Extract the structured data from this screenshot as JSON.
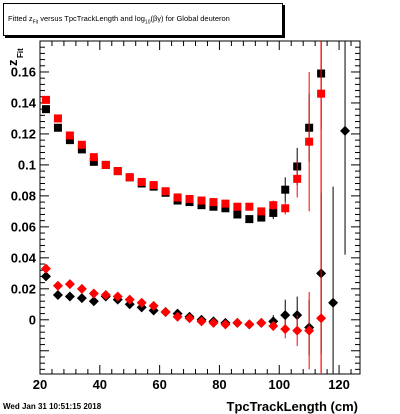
{
  "title_prefix": "Fitted",
  "title_mid": "versus TpcTrackLength and log",
  "title_suffix": "for Global deuteron",
  "title_z": "z",
  "title_z_sub": "Fit",
  "title_log_sub": "10",
  "title_arg": "(βγ)",
  "timestamp": "Wed Jan 31 10:51:15 2018",
  "chart_data": {
    "type": "scatter",
    "title": "Fitted z_Fit versus TpcTrackLength and log10(βγ) for Global deuteron",
    "xlabel": "TpcTrackLength (cm)",
    "ylabel": "z_Fit",
    "ylabel_main": "z",
    "ylabel_sub": "Fit",
    "xlim": [
      20,
      127
    ],
    "ylim": [
      -0.035,
      0.18
    ],
    "x_ticks": [
      20,
      40,
      60,
      80,
      100,
      120
    ],
    "y_ticks": [
      0,
      0.02,
      0.04,
      0.06,
      0.08,
      0.1,
      0.12,
      0.14,
      0.16
    ],
    "y_tick_labels": [
      "0",
      "0.02",
      "0.04",
      "0.06",
      "0.08",
      "0.1",
      "0.12",
      "0.14",
      "0.16"
    ],
    "grid": false,
    "series": [
      {
        "marker": "square",
        "color": "#000000",
        "x": [
          22,
          26,
          30,
          34,
          38,
          42,
          46,
          50,
          54,
          58,
          62,
          66,
          70,
          74,
          78,
          82,
          86,
          90,
          94,
          98,
          102,
          106,
          110,
          114
        ],
        "y": [
          0.136,
          0.124,
          0.116,
          0.11,
          0.102,
          0.1,
          0.096,
          0.092,
          0.088,
          0.086,
          0.082,
          0.077,
          0.076,
          0.074,
          0.073,
          0.072,
          0.068,
          0.065,
          0.066,
          0.069,
          0.084,
          0.099,
          0.124,
          0.159
        ],
        "err": [
          0,
          0,
          0,
          0,
          0,
          0,
          0,
          0,
          0,
          0,
          0,
          0,
          0,
          0,
          0,
          0,
          0,
          0,
          0,
          0.004,
          0.008,
          0.012,
          0.022,
          0.036
        ]
      },
      {
        "marker": "square",
        "color": "#ff0000",
        "x": [
          22,
          26,
          30,
          34,
          38,
          42,
          46,
          50,
          54,
          58,
          62,
          66,
          70,
          74,
          78,
          82,
          86,
          90,
          94,
          98,
          102,
          106,
          110,
          114
        ],
        "y": [
          0.142,
          0.13,
          0.119,
          0.113,
          0.105,
          0.1,
          0.096,
          0.092,
          0.089,
          0.087,
          0.083,
          0.079,
          0.078,
          0.077,
          0.076,
          0.075,
          0.073,
          0.073,
          0.07,
          0.074,
          0.072,
          0.091,
          0.115,
          0.146
        ],
        "err": [
          0,
          0,
          0,
          0,
          0,
          0,
          0,
          0,
          0,
          0,
          0,
          0,
          0,
          0,
          0,
          0,
          0,
          0,
          0,
          0.003,
          0.004,
          0.012,
          0.045,
          0.18
        ]
      },
      {
        "marker": "diamond",
        "color": "#000000",
        "x": [
          22,
          26,
          30,
          34,
          38,
          42,
          46,
          50,
          54,
          58,
          62,
          66,
          70,
          74,
          78,
          82,
          86,
          90,
          94,
          98,
          102,
          106,
          110,
          114,
          118,
          122
        ],
        "y": [
          0.028,
          0.016,
          0.015,
          0.014,
          0.012,
          0.015,
          0.013,
          0.01,
          0.008,
          0.006,
          0.005,
          0.004,
          0.002,
          0.0,
          -0.001,
          -0.002,
          -0.002,
          -0.003,
          -0.002,
          -0.001,
          0.003,
          0.003,
          -0.005,
          0.03,
          0.011,
          0.122
        ],
        "err": [
          0,
          0,
          0,
          0,
          0,
          0,
          0,
          0,
          0,
          0,
          0,
          0,
          0,
          0,
          0,
          0,
          0,
          0,
          0,
          0.004,
          0.01,
          0.012,
          0.018,
          0.052,
          0.075,
          0.08
        ]
      },
      {
        "marker": "diamond",
        "color": "#ff0000",
        "x": [
          22,
          26,
          30,
          34,
          38,
          42,
          46,
          50,
          54,
          58,
          62,
          66,
          70,
          74,
          78,
          82,
          86,
          90,
          94,
          98,
          102,
          106,
          110,
          114
        ],
        "y": [
          0.033,
          0.022,
          0.023,
          0.02,
          0.017,
          0.016,
          0.015,
          0.013,
          0.011,
          0.009,
          0.005,
          0.002,
          0.001,
          -0.001,
          -0.002,
          -0.003,
          -0.002,
          -0.003,
          -0.002,
          -0.004,
          -0.006,
          -0.007,
          -0.007,
          0.001
        ],
        "err": [
          0,
          0,
          0,
          0,
          0,
          0,
          0,
          0,
          0,
          0,
          0,
          0,
          0,
          0,
          0,
          0,
          0,
          0,
          0,
          0.003,
          0.006,
          0.01,
          0.025,
          0.2
        ]
      }
    ]
  }
}
